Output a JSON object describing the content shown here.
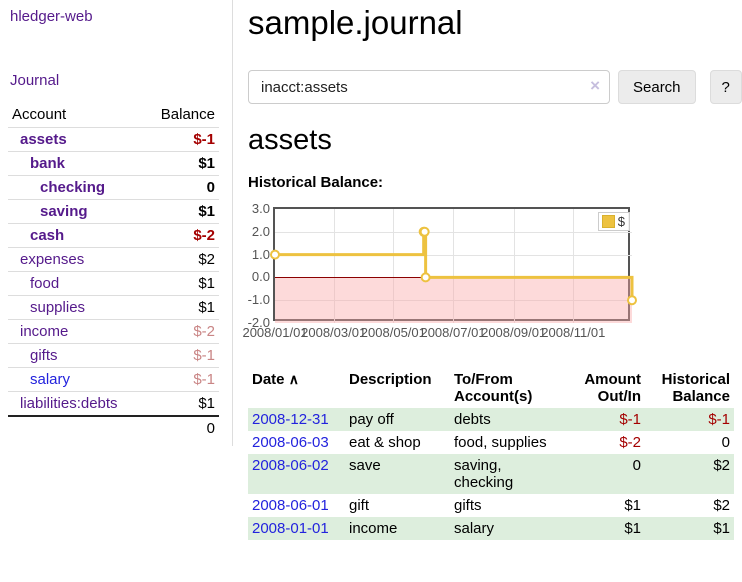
{
  "app": {
    "title": "hledger-web",
    "nav_journal": "Journal"
  },
  "sidebar": {
    "header": {
      "account": "Account",
      "balance": "Balance"
    },
    "accounts": [
      {
        "name": "assets",
        "depth": 1,
        "bold": true,
        "name_color": "purple",
        "balance": "$-1",
        "balance_color": "neg"
      },
      {
        "name": "bank",
        "depth": 2,
        "bold": true,
        "name_color": "purple",
        "balance": "$1",
        "balance_color": "pos"
      },
      {
        "name": "checking",
        "depth": 3,
        "bold": true,
        "name_color": "purple",
        "balance": "0",
        "balance_color": "pos"
      },
      {
        "name": "saving",
        "depth": 3,
        "bold": true,
        "name_color": "purple",
        "balance": "$1",
        "balance_color": "pos"
      },
      {
        "name": "cash",
        "depth": 2,
        "bold": true,
        "name_color": "purple",
        "balance": "$-2",
        "balance_color": "neg"
      },
      {
        "name": "expenses",
        "depth": 1,
        "bold": false,
        "name_color": "purple",
        "balance": "$2",
        "balance_color": "pos"
      },
      {
        "name": "food",
        "depth": 2,
        "bold": false,
        "name_color": "purple",
        "balance": "$1",
        "balance_color": "pos"
      },
      {
        "name": "supplies",
        "depth": 2,
        "bold": false,
        "name_color": "purple",
        "balance": "$1",
        "balance_color": "pos"
      },
      {
        "name": "income",
        "depth": 1,
        "bold": false,
        "name_color": "purple",
        "balance": "$-2",
        "balance_color": "negpale"
      },
      {
        "name": "gifts",
        "depth": 2,
        "bold": false,
        "name_color": "purple",
        "balance": "$-1",
        "balance_color": "negpale"
      },
      {
        "name": "salary",
        "depth": 2,
        "bold": false,
        "name_color": "blue",
        "balance": "$-1",
        "balance_color": "negpale"
      },
      {
        "name": "liabilities:debts",
        "depth": 1,
        "bold": false,
        "name_color": "purple",
        "balance": "$1",
        "balance_color": "pos"
      }
    ],
    "total": "0"
  },
  "main": {
    "title": "sample.journal",
    "search": {
      "value": "inacct:assets",
      "clear_icon": "×",
      "button": "Search",
      "help": "?"
    },
    "account_heading": "assets",
    "chart_label": "Historical Balance:"
  },
  "chart_data": {
    "type": "line",
    "title": "Historical Balance",
    "step": true,
    "series": [
      {
        "name": "$",
        "color": "#edc240",
        "points": [
          {
            "date": "2008-01-01",
            "day": 0,
            "value": 1
          },
          {
            "date": "2008-06-01",
            "day": 152,
            "value": 2
          },
          {
            "date": "2008-06-02",
            "day": 153,
            "value": 2
          },
          {
            "date": "2008-06-03",
            "day": 154,
            "value": 0
          },
          {
            "date": "2008-12-31",
            "day": 365,
            "value": -1
          }
        ]
      }
    ],
    "ylim": [
      -2,
      3
    ],
    "yticks": [
      {
        "label": "3.0",
        "value": 3
      },
      {
        "label": "2.0",
        "value": 2
      },
      {
        "label": "1.0",
        "value": 1
      },
      {
        "label": "0.0",
        "value": 0
      },
      {
        "label": "-1.0",
        "value": -1
      },
      {
        "label": "-2.0",
        "value": -2
      }
    ],
    "xlim_days": [
      0,
      365
    ],
    "xticks": [
      {
        "label": "2008/01/01",
        "day": 0
      },
      {
        "label": "2008/03/01",
        "day": 60
      },
      {
        "label": "2008/05/01",
        "day": 121
      },
      {
        "label": "2008/07/01",
        "day": 182
      },
      {
        "label": "2008/09/01",
        "day": 244
      },
      {
        "label": "2008/11/01",
        "day": 305
      }
    ],
    "legend": {
      "label": "$",
      "position": "top-right"
    },
    "grid": true,
    "negative_fill": "#f8d7d7",
    "zero_line_color": "#8b0000"
  },
  "table": {
    "headers": [
      {
        "label": "Date",
        "icon": "∧"
      },
      {
        "label": "Description"
      },
      {
        "label": "To/From Account(s)"
      },
      {
        "label": "Amount Out/In"
      },
      {
        "label": "Historical Balance"
      }
    ],
    "rows": [
      {
        "date": "2008-12-31",
        "description": "pay off",
        "accounts": "debts",
        "amount": "$-1",
        "amount_neg": true,
        "balance": "$-1",
        "balance_neg": true
      },
      {
        "date": "2008-06-03",
        "description": "eat & shop",
        "accounts": "food, supplies",
        "amount": "$-2",
        "amount_neg": true,
        "balance": "0",
        "balance_neg": false
      },
      {
        "date": "2008-06-02",
        "description": "save",
        "accounts": "saving, checking",
        "amount": "0",
        "amount_neg": false,
        "balance": "$2",
        "balance_neg": false
      },
      {
        "date": "2008-06-01",
        "description": "gift",
        "accounts": "gifts",
        "amount": "$1",
        "amount_neg": false,
        "balance": "$2",
        "balance_neg": false
      },
      {
        "date": "2008-01-01",
        "description": "income",
        "accounts": "salary",
        "amount": "$1",
        "amount_neg": false,
        "balance": "$1",
        "balance_neg": false
      }
    ]
  }
}
